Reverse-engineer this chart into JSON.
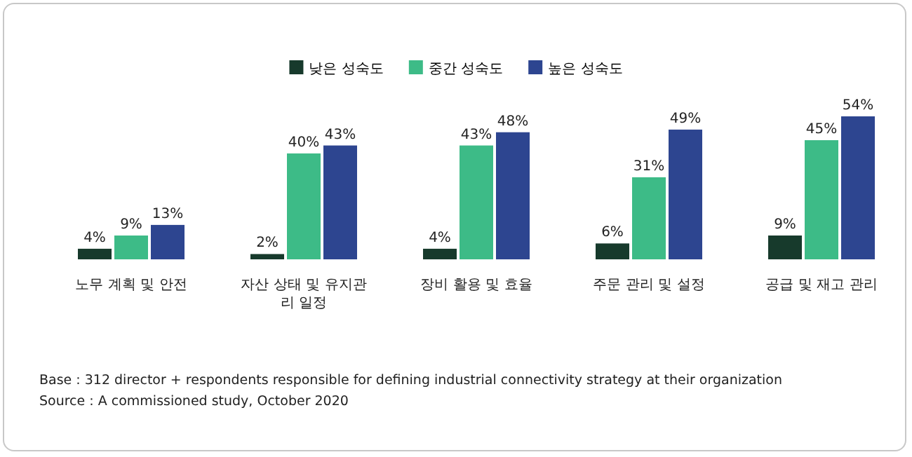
{
  "chart_data": {
    "type": "bar",
    "categories": [
      "노무 계획 및 안전",
      "자산 상태 및 유지관리 일정",
      "장비 활용 및 효율",
      "주문 관리 및 설정",
      "공급 및 재고 관리"
    ],
    "series": [
      {
        "name": "낮은 성숙도",
        "color": "#173a2c",
        "values": [
          4,
          2,
          4,
          6,
          9
        ],
        "value_labels": [
          "4%",
          "2%",
          "4%",
          "6%",
          "9%"
        ]
      },
      {
        "name": "중간 성숙도",
        "color": "#3dbb87",
        "values": [
          9,
          40,
          43,
          31,
          45
        ],
        "value_labels": [
          "9%",
          "40%",
          "43%",
          "31%",
          "45%"
        ]
      },
      {
        "name": "높은 성숙도",
        "color": "#2d4590",
        "values": [
          13,
          43,
          48,
          49,
          54
        ],
        "value_labels": [
          "13%",
          "43%",
          "48%",
          "49%",
          "54%"
        ]
      }
    ],
    "legend": "top",
    "annotations": [
      "Base : 312 director + respondents responsible for defining industrial connectivity strategy at their organization",
      "Source : A commissioned study, October 2020"
    ]
  }
}
